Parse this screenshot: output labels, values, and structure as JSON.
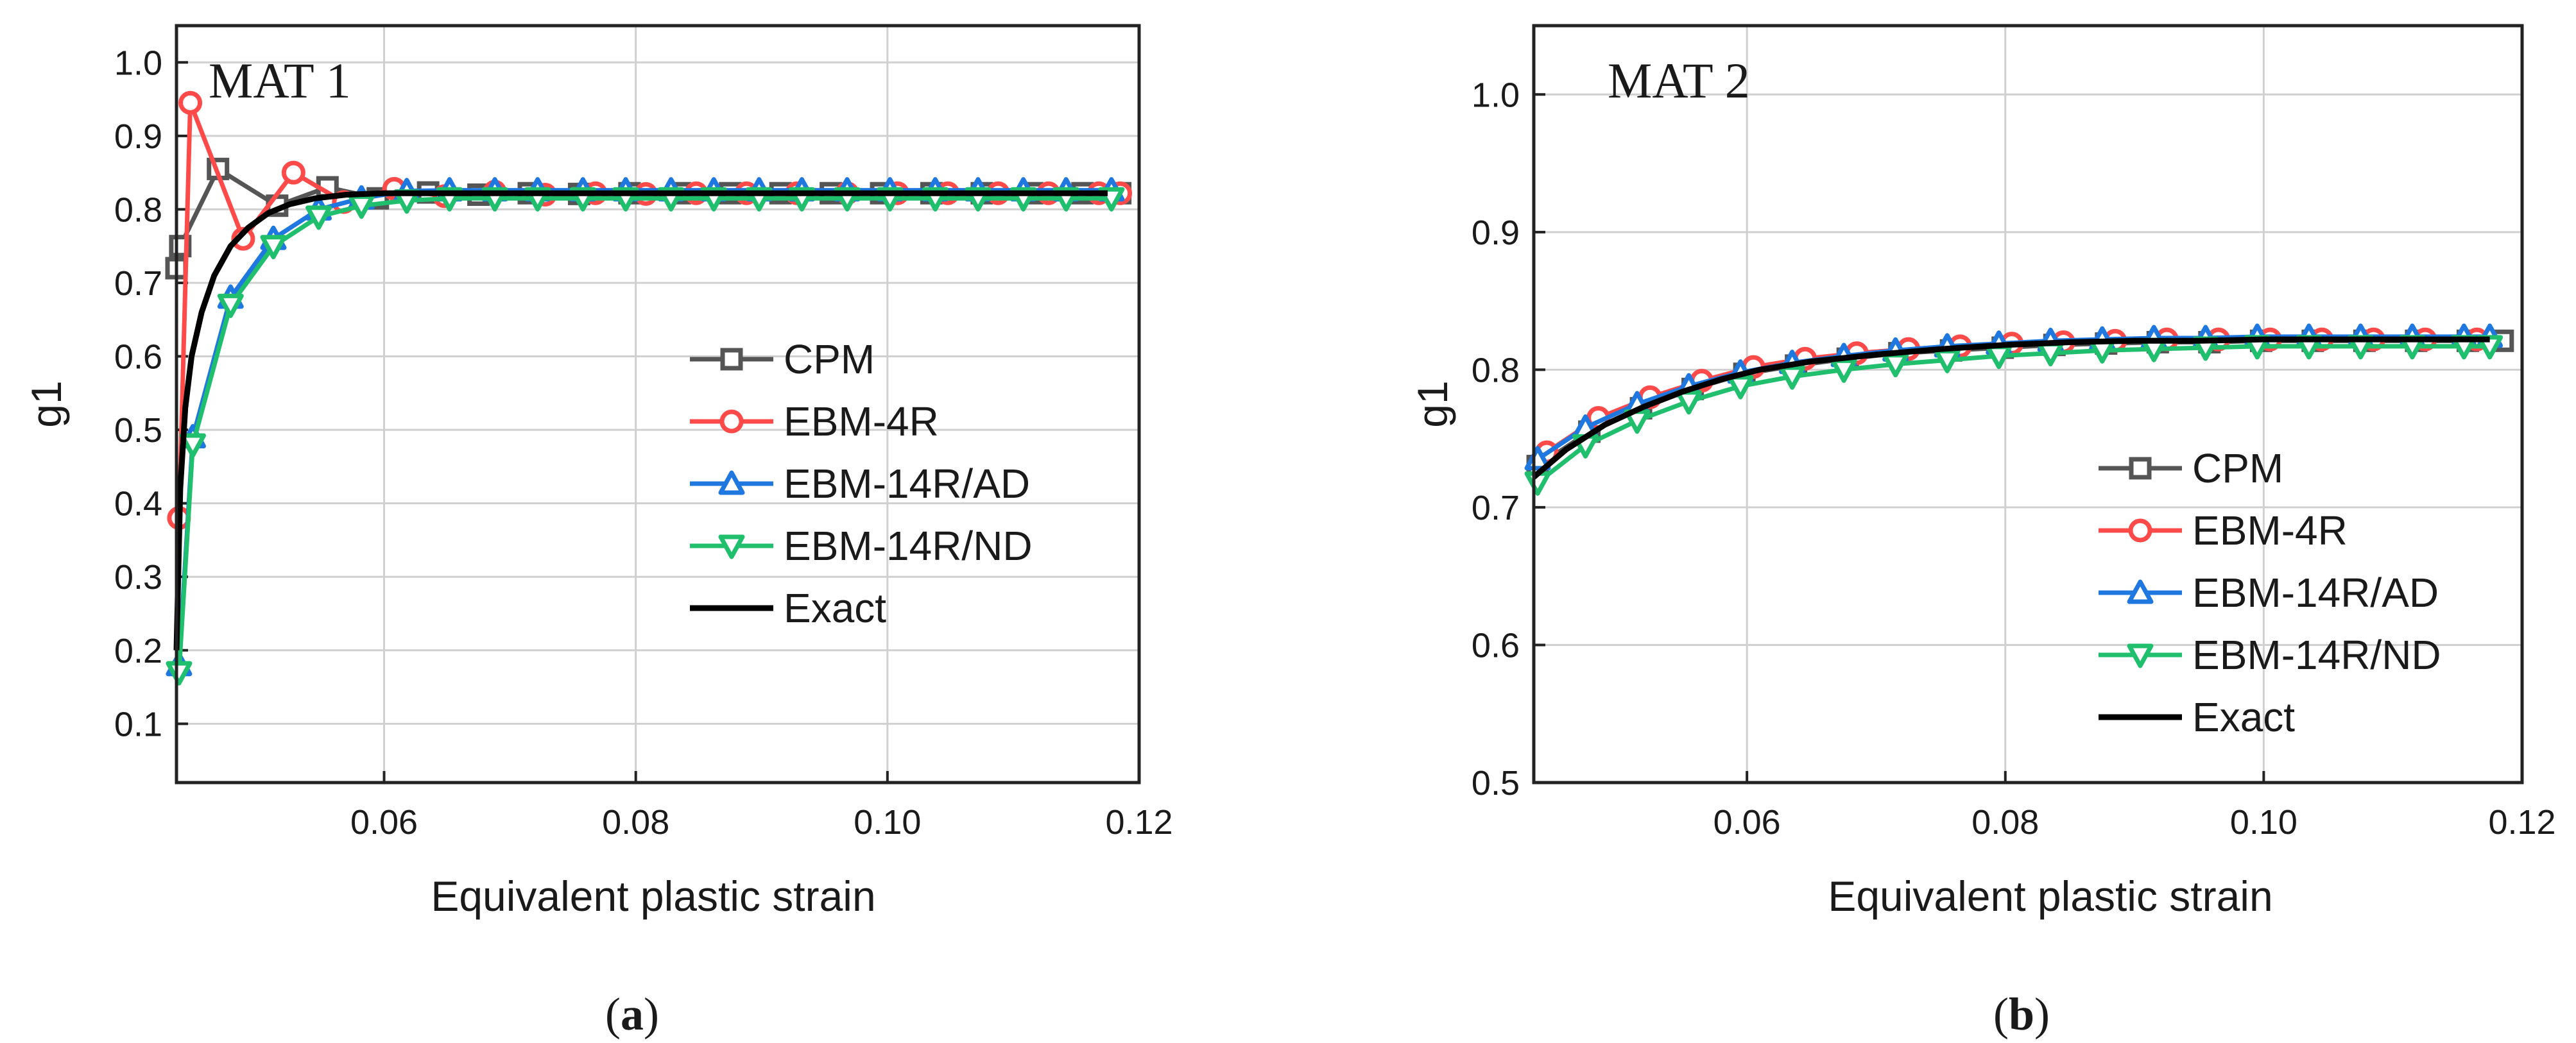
{
  "chart_data": [
    {
      "type": "line",
      "panel_label": "a",
      "title": "MAT 1",
      "xlabel": "Equivalent plastic strain",
      "ylabel": "g1",
      "xlim": [
        0.0435,
        0.12
      ],
      "ylim": [
        0.02,
        1.05
      ],
      "xticks": [
        0.06,
        0.08,
        0.1,
        0.12
      ],
      "xtick_labels": [
        "0.06",
        "0.08",
        "0.10",
        "0.12"
      ],
      "yticks": [
        0.1,
        0.2,
        0.3,
        0.4,
        0.5,
        0.6,
        0.7,
        0.8,
        0.9,
        1.0
      ],
      "ytick_labels": [
        "0.1",
        "0.2",
        "0.3",
        "0.4",
        "0.5",
        "0.6",
        "0.7",
        "0.8",
        "0.9",
        "1.0"
      ],
      "grid": true,
      "legend_position": "center-right",
      "series": [
        {
          "name": "CPM",
          "color": "#555555",
          "marker": "square",
          "x": [
            0.0435,
            0.0438,
            0.0468,
            0.0515,
            0.0555,
            0.0595,
            0.0635,
            0.0675,
            0.0715,
            0.0755,
            0.0795,
            0.0835,
            0.0875,
            0.0915,
            0.0955,
            0.0995,
            0.1035,
            0.1075,
            0.1115,
            0.1155,
            0.1185
          ],
          "values": [
            0.72,
            0.75,
            0.855,
            0.805,
            0.83,
            0.815,
            0.823,
            0.82,
            0.822,
            0.821,
            0.822,
            0.822,
            0.822,
            0.822,
            0.822,
            0.822,
            0.822,
            0.822,
            0.822,
            0.822,
            0.822
          ]
        },
        {
          "name": "EBM-4R",
          "color": "#ff4a4a",
          "marker": "circle",
          "x": [
            0.0437,
            0.0446,
            0.0488,
            0.0528,
            0.0568,
            0.0608,
            0.0648,
            0.0688,
            0.0728,
            0.0768,
            0.0808,
            0.0848,
            0.0888,
            0.0928,
            0.0968,
            0.1008,
            0.1048,
            0.1088,
            0.1128,
            0.1168,
            0.1185
          ],
          "values": [
            0.38,
            0.945,
            0.76,
            0.85,
            0.81,
            0.828,
            0.818,
            0.824,
            0.82,
            0.822,
            0.821,
            0.822,
            0.822,
            0.822,
            0.822,
            0.822,
            0.822,
            0.822,
            0.822,
            0.822,
            0.822
          ]
        },
        {
          "name": "EBM-14R/AD",
          "color": "#1f77e0",
          "marker": "triangle-up",
          "x": [
            0.0437,
            0.0448,
            0.0478,
            0.0512,
            0.0548,
            0.0582,
            0.0618,
            0.0652,
            0.0688,
            0.0722,
            0.0758,
            0.0792,
            0.0828,
            0.0862,
            0.0898,
            0.0932,
            0.0968,
            0.1002,
            0.1038,
            0.1072,
            0.1108,
            0.1142,
            0.1178
          ],
          "values": [
            0.18,
            0.49,
            0.68,
            0.76,
            0.8,
            0.815,
            0.825,
            0.826,
            0.826,
            0.826,
            0.826,
            0.826,
            0.826,
            0.826,
            0.826,
            0.826,
            0.826,
            0.826,
            0.826,
            0.826,
            0.826,
            0.826,
            0.826
          ]
        },
        {
          "name": "EBM-14R/ND",
          "color": "#1fbf6e",
          "marker": "triangle-down",
          "x": [
            0.0437,
            0.0448,
            0.0478,
            0.0512,
            0.0548,
            0.0582,
            0.0618,
            0.0652,
            0.0688,
            0.0722,
            0.0758,
            0.0792,
            0.0828,
            0.0862,
            0.0898,
            0.0932,
            0.0968,
            0.1002,
            0.1038,
            0.1072,
            0.1108,
            0.1142,
            0.1178
          ],
          "values": [
            0.17,
            0.48,
            0.67,
            0.75,
            0.79,
            0.805,
            0.812,
            0.815,
            0.815,
            0.815,
            0.815,
            0.815,
            0.815,
            0.815,
            0.815,
            0.815,
            0.815,
            0.815,
            0.815,
            0.815,
            0.815,
            0.815,
            0.815
          ]
        },
        {
          "name": "Exact",
          "color": "#000000",
          "marker": "none",
          "x": [
            0.0435,
            0.0438,
            0.0442,
            0.0447,
            0.0455,
            0.0465,
            0.0478,
            0.0492,
            0.0508,
            0.0525,
            0.0545,
            0.057,
            0.06,
            0.065,
            0.07,
            0.08,
            0.09,
            0.1,
            0.11,
            0.1175
          ],
          "values": [
            0.2,
            0.42,
            0.53,
            0.6,
            0.66,
            0.71,
            0.75,
            0.775,
            0.795,
            0.807,
            0.815,
            0.82,
            0.822,
            0.822,
            0.822,
            0.822,
            0.822,
            0.822,
            0.822,
            0.822
          ]
        }
      ]
    },
    {
      "type": "line",
      "panel_label": "b",
      "title": "MAT 2",
      "xlabel": "Equivalent plastic strain",
      "ylabel": "g1",
      "xlim": [
        0.0435,
        0.12
      ],
      "ylim": [
        0.5,
        1.05
      ],
      "xticks": [
        0.06,
        0.08,
        0.1,
        0.12
      ],
      "xtick_labels": [
        "0.06",
        "0.08",
        "0.10",
        "0.12"
      ],
      "yticks": [
        0.5,
        0.6,
        0.7,
        0.8,
        0.9,
        1.0
      ],
      "ytick_labels": [
        "0.5",
        "0.6",
        "0.7",
        "0.8",
        "0.9",
        "1.0"
      ],
      "grid": true,
      "legend_position": "bottom-right",
      "series": [
        {
          "name": "CPM",
          "color": "#555555",
          "marker": "square",
          "x": [
            0.0438,
            0.0478,
            0.0518,
            0.0558,
            0.0598,
            0.0638,
            0.0678,
            0.0718,
            0.0758,
            0.0798,
            0.0838,
            0.0878,
            0.0918,
            0.0958,
            0.0998,
            0.1038,
            0.1078,
            0.1118,
            0.1158,
            0.1185
          ],
          "values": [
            0.73,
            0.755,
            0.772,
            0.786,
            0.797,
            0.803,
            0.808,
            0.812,
            0.814,
            0.816,
            0.818,
            0.819,
            0.82,
            0.82,
            0.821,
            0.821,
            0.821,
            0.821,
            0.821,
            0.821
          ]
        },
        {
          "name": "EBM-4R",
          "color": "#ff4a4a",
          "marker": "circle",
          "x": [
            0.0445,
            0.0485,
            0.0525,
            0.0565,
            0.0605,
            0.0645,
            0.0685,
            0.0725,
            0.0765,
            0.0805,
            0.0845,
            0.0885,
            0.0925,
            0.0965,
            0.1005,
            0.1045,
            0.1085,
            0.1125,
            0.1165
          ],
          "values": [
            0.74,
            0.765,
            0.78,
            0.792,
            0.802,
            0.808,
            0.812,
            0.815,
            0.817,
            0.819,
            0.82,
            0.821,
            0.822,
            0.822,
            0.822,
            0.822,
            0.822,
            0.822,
            0.822
          ]
        },
        {
          "name": "EBM-14R/AD",
          "color": "#1f77e0",
          "marker": "triangle-up",
          "x": [
            0.0438,
            0.0475,
            0.0515,
            0.0555,
            0.0595,
            0.0635,
            0.0675,
            0.0715,
            0.0755,
            0.0795,
            0.0835,
            0.0875,
            0.0915,
            0.0955,
            0.0995,
            0.1035,
            0.1075,
            0.1115,
            0.1155,
            0.1175
          ],
          "values": [
            0.735,
            0.758,
            0.775,
            0.788,
            0.798,
            0.805,
            0.81,
            0.814,
            0.817,
            0.819,
            0.821,
            0.822,
            0.823,
            0.823,
            0.824,
            0.824,
            0.824,
            0.824,
            0.824,
            0.824
          ]
        },
        {
          "name": "EBM-14R/ND",
          "color": "#1fbf6e",
          "marker": "triangle-down",
          "x": [
            0.0438,
            0.0475,
            0.0515,
            0.0555,
            0.0595,
            0.0635,
            0.0675,
            0.0715,
            0.0755,
            0.0795,
            0.0835,
            0.0875,
            0.0915,
            0.0955,
            0.0995,
            0.1035,
            0.1075,
            0.1115,
            0.1155,
            0.1175
          ],
          "values": [
            0.718,
            0.745,
            0.763,
            0.777,
            0.788,
            0.795,
            0.8,
            0.804,
            0.807,
            0.81,
            0.812,
            0.814,
            0.815,
            0.816,
            0.817,
            0.817,
            0.817,
            0.817,
            0.817,
            0.817
          ]
        },
        {
          "name": "Exact",
          "color": "#000000",
          "marker": "none",
          "x": [
            0.0435,
            0.046,
            0.049,
            0.052,
            0.055,
            0.058,
            0.061,
            0.065,
            0.07,
            0.075,
            0.08,
            0.085,
            0.09,
            0.095,
            0.1,
            0.105,
            0.11,
            0.1175
          ],
          "values": [
            0.722,
            0.742,
            0.76,
            0.773,
            0.784,
            0.793,
            0.8,
            0.806,
            0.811,
            0.815,
            0.818,
            0.82,
            0.821,
            0.821,
            0.822,
            0.822,
            0.822,
            0.822
          ]
        }
      ]
    }
  ]
}
